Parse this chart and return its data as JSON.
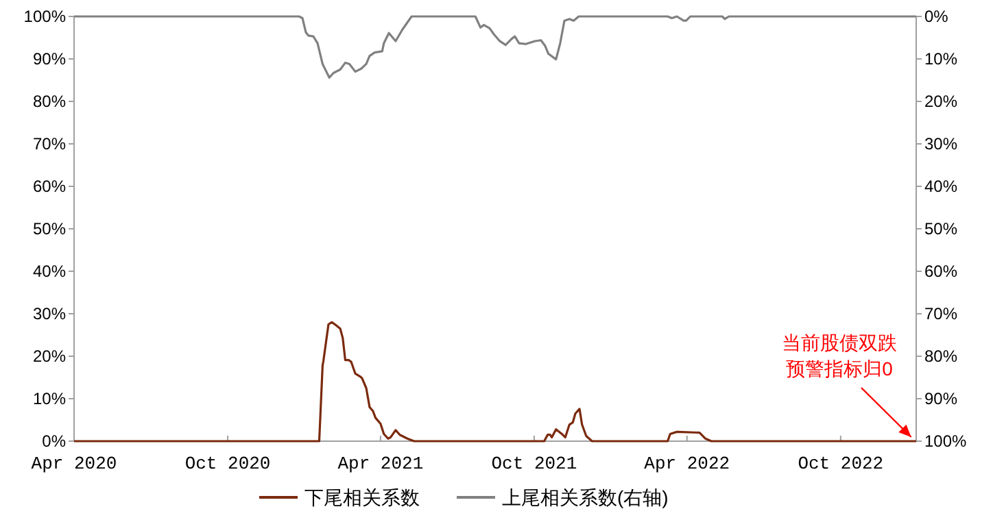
{
  "chart_data": {
    "type": "line",
    "xlim": [
      "2020-04-01",
      "2022-12-30"
    ],
    "xticks": [
      {
        "value": "2020-04-01",
        "label": "Apr 2020"
      },
      {
        "value": "2020-10-01",
        "label": "Oct 2020"
      },
      {
        "value": "2021-04-01",
        "label": "Apr 2021"
      },
      {
        "value": "2021-10-01",
        "label": "Oct 2021"
      },
      {
        "value": "2022-04-01",
        "label": "Apr 2022"
      },
      {
        "value": "2022-10-01",
        "label": "Oct 2022"
      }
    ],
    "ylim": [
      0,
      100
    ],
    "yticks": [
      {
        "value": 0,
        "label": "0%"
      },
      {
        "value": 10,
        "label": "10%"
      },
      {
        "value": 20,
        "label": "20%"
      },
      {
        "value": 30,
        "label": "30%"
      },
      {
        "value": 40,
        "label": "40%"
      },
      {
        "value": 50,
        "label": "50%"
      },
      {
        "value": 60,
        "label": "60%"
      },
      {
        "value": 70,
        "label": "70%"
      },
      {
        "value": 80,
        "label": "80%"
      },
      {
        "value": 90,
        "label": "90%"
      },
      {
        "value": 100,
        "label": "100%"
      }
    ],
    "y2lim": [
      100,
      0
    ],
    "y2ticks": [
      {
        "value": 0,
        "label": "0%"
      },
      {
        "value": 10,
        "label": "10%"
      },
      {
        "value": 20,
        "label": "20%"
      },
      {
        "value": 30,
        "label": "30%"
      },
      {
        "value": 40,
        "label": "40%"
      },
      {
        "value": 50,
        "label": "50%"
      },
      {
        "value": 60,
        "label": "60%"
      },
      {
        "value": 70,
        "label": "70%"
      },
      {
        "value": 80,
        "label": "80%"
      },
      {
        "value": 90,
        "label": "90%"
      },
      {
        "value": 100,
        "label": "100%"
      }
    ],
    "grid": false,
    "legend": "bottom",
    "series": [
      {
        "name": "下尾相关系数",
        "color": "#7b2a0e",
        "x": [
          "2020-04-01",
          "2021-01-18",
          "2021-01-22",
          "2021-01-23",
          "2021-01-29",
          "2021-02-02",
          "2021-02-07",
          "2021-02-12",
          "2021-02-15",
          "2021-02-18",
          "2021-02-22",
          "2021-02-25",
          "2021-03-02",
          "2021-03-08",
          "2021-03-10",
          "2021-03-15",
          "2021-03-19",
          "2021-03-23",
          "2021-03-26",
          "2021-04-01",
          "2021-04-05",
          "2021-04-10",
          "2021-04-13",
          "2021-04-19",
          "2021-04-24",
          "2021-05-03",
          "2021-05-11",
          "2021-10-13",
          "2021-10-17",
          "2021-10-20",
          "2021-10-22",
          "2021-10-27",
          "2021-11-03",
          "2021-11-07",
          "2021-11-12",
          "2021-11-16",
          "2021-11-19",
          "2021-11-24",
          "2021-11-27",
          "2021-12-02",
          "2021-12-09",
          "2022-03-09",
          "2022-03-12",
          "2022-03-20",
          "2022-04-16",
          "2022-04-23",
          "2022-04-30",
          "2022-12-30"
        ],
        "values": [
          0,
          0,
          17.8,
          18.9,
          27.5,
          28,
          27.3,
          26.5,
          24.3,
          19.1,
          19.1,
          18.7,
          15.9,
          15.2,
          14.8,
          12.5,
          8,
          7.1,
          5.5,
          4.1,
          1.7,
          0.6,
          0.9,
          2.6,
          1.5,
          0.6,
          0,
          0,
          1.5,
          1.5,
          0.9,
          2.8,
          1.7,
          0.9,
          3.9,
          4.4,
          6.5,
          7.6,
          3.9,
          1.2,
          0,
          0,
          1.7,
          2.2,
          2,
          0.6,
          0,
          0
        ]
      },
      {
        "name": "上尾相关系数(右轴)",
        "color": "#808080",
        "axis": "y2",
        "x": [
          "2020-04-01",
          "2020-12-25",
          "2020-12-29",
          "2021-01-02",
          "2021-01-05",
          "2021-01-11",
          "2021-01-16",
          "2021-01-22",
          "2021-01-26",
          "2021-01-30",
          "2021-02-04",
          "2021-02-12",
          "2021-02-18",
          "2021-02-23",
          "2021-03-02",
          "2021-03-09",
          "2021-03-15",
          "2021-03-19",
          "2021-03-25",
          "2021-04-03",
          "2021-04-05",
          "2021-04-11",
          "2021-04-19",
          "2021-04-27",
          "2021-05-08",
          "2021-07-23",
          "2021-07-29",
          "2021-08-02",
          "2021-08-09",
          "2021-08-14",
          "2021-08-21",
          "2021-08-28",
          "2021-09-04",
          "2021-09-08",
          "2021-09-13",
          "2021-09-21",
          "2021-10-02",
          "2021-10-09",
          "2021-10-14",
          "2021-10-18",
          "2021-10-27",
          "2021-11-01",
          "2021-11-06",
          "2021-11-12",
          "2021-11-17",
          "2021-11-23",
          "2022-03-09",
          "2022-03-14",
          "2022-03-20",
          "2022-03-28",
          "2022-03-31",
          "2022-04-05",
          "2022-05-13",
          "2022-05-16",
          "2022-05-21",
          "2022-12-30"
        ],
        "values": [
          0,
          0,
          0.4,
          3.7,
          4.5,
          4.7,
          6.3,
          11.2,
          12.8,
          14.4,
          13.3,
          12.5,
          10.9,
          11.2,
          13,
          12.3,
          11.2,
          9.3,
          8.5,
          8.2,
          6.3,
          3.9,
          5.8,
          3.1,
          0,
          0,
          2.6,
          2,
          2.8,
          4.2,
          5.8,
          6.7,
          5.3,
          4.7,
          6.3,
          6.5,
          5.8,
          5.6,
          6.9,
          8.8,
          10.1,
          6.3,
          1,
          0.6,
          1,
          0,
          0,
          0.4,
          0,
          1,
          1,
          0,
          0,
          0.6,
          0,
          0
        ]
      }
    ],
    "annotations": [
      {
        "text": "当前股债双跌预警指标归0",
        "x": "2022-12-24",
        "y": 0
      }
    ]
  }
}
